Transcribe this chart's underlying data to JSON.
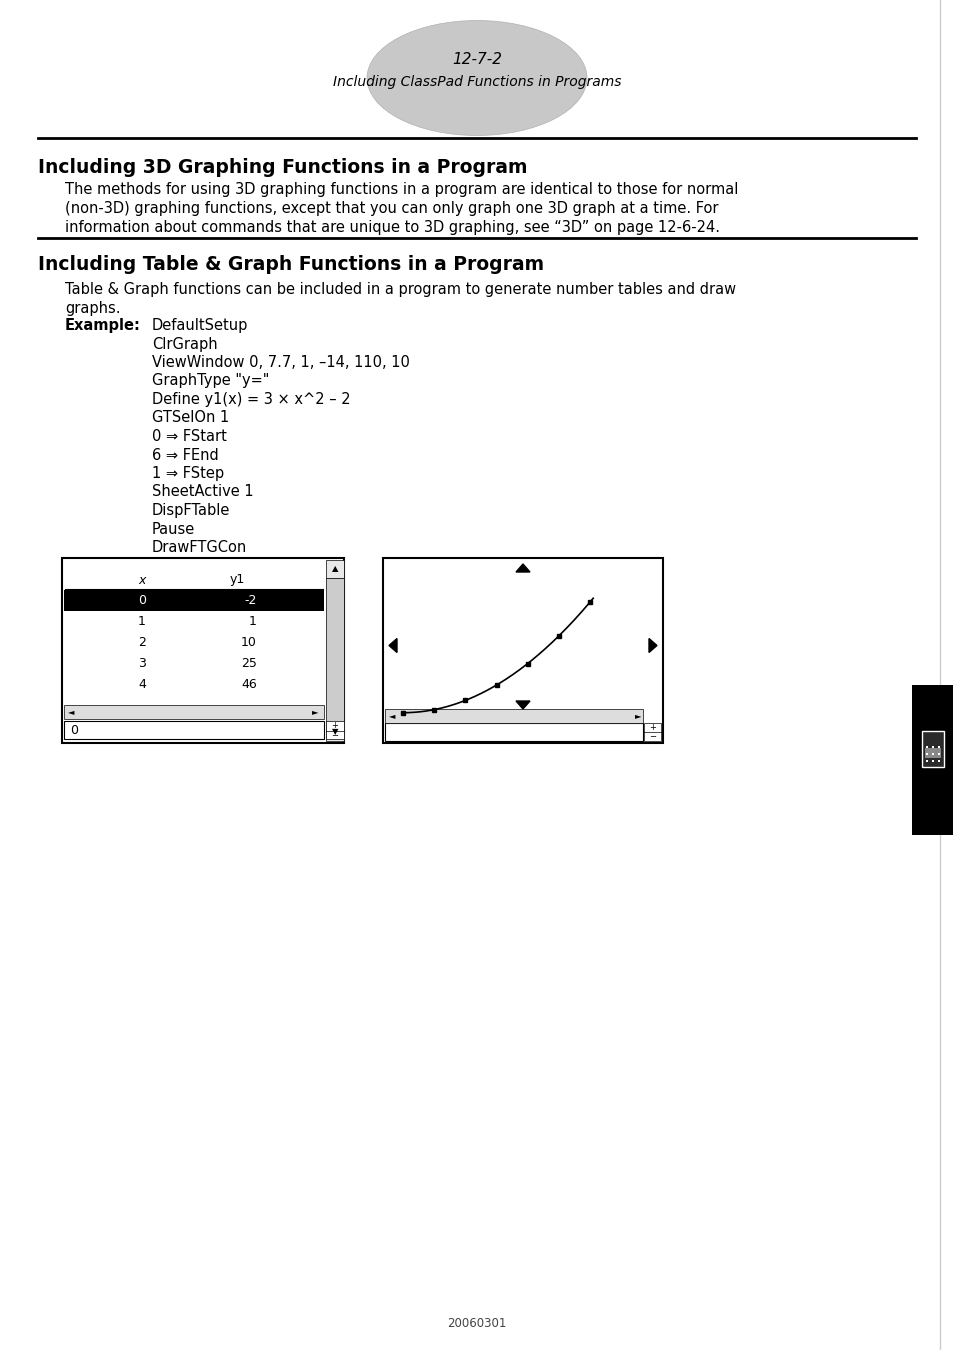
{
  "page_num": "12-7-2",
  "page_subtitle": "Including ClassPad Functions in Programs",
  "section1_title": "Including 3D Graphing Functions in a Program",
  "section1_body_lines": [
    "The methods for using 3D graphing functions in a program are identical to those for normal",
    "(non-3D) graphing functions, except that you can only graph one 3D graph at a time. For",
    "information about commands that are unique to 3D graphing, see “3D” on page 12-6-24."
  ],
  "section2_title": "Including Table & Graph Functions in a Program",
  "section2_intro_lines": [
    "Table & Graph functions can be included in a program to generate number tables and draw",
    "graphs."
  ],
  "example_label": "Example:",
  "example_code": [
    "DefaultSetup",
    "ClrGraph",
    "ViewWindow 0, 7.7, 1, –14, 110, 10",
    "GraphType \"y=\"",
    "Define y1(x) = 3 × x^2 – 2",
    "GTSelOn 1",
    "0 ⇒ FStart",
    "6 ⇒ FEnd",
    "1 ⇒ FStep",
    "SheetActive 1",
    "DispFTable",
    "Pause",
    "DrawFTGCon"
  ],
  "tab_x_values": [
    "0",
    "1",
    "2",
    "3",
    "4"
  ],
  "tab_y1_values": [
    "-2",
    "1",
    "10",
    "25",
    "46"
  ],
  "footer_text": "20060301",
  "bg_color": "#ffffff"
}
